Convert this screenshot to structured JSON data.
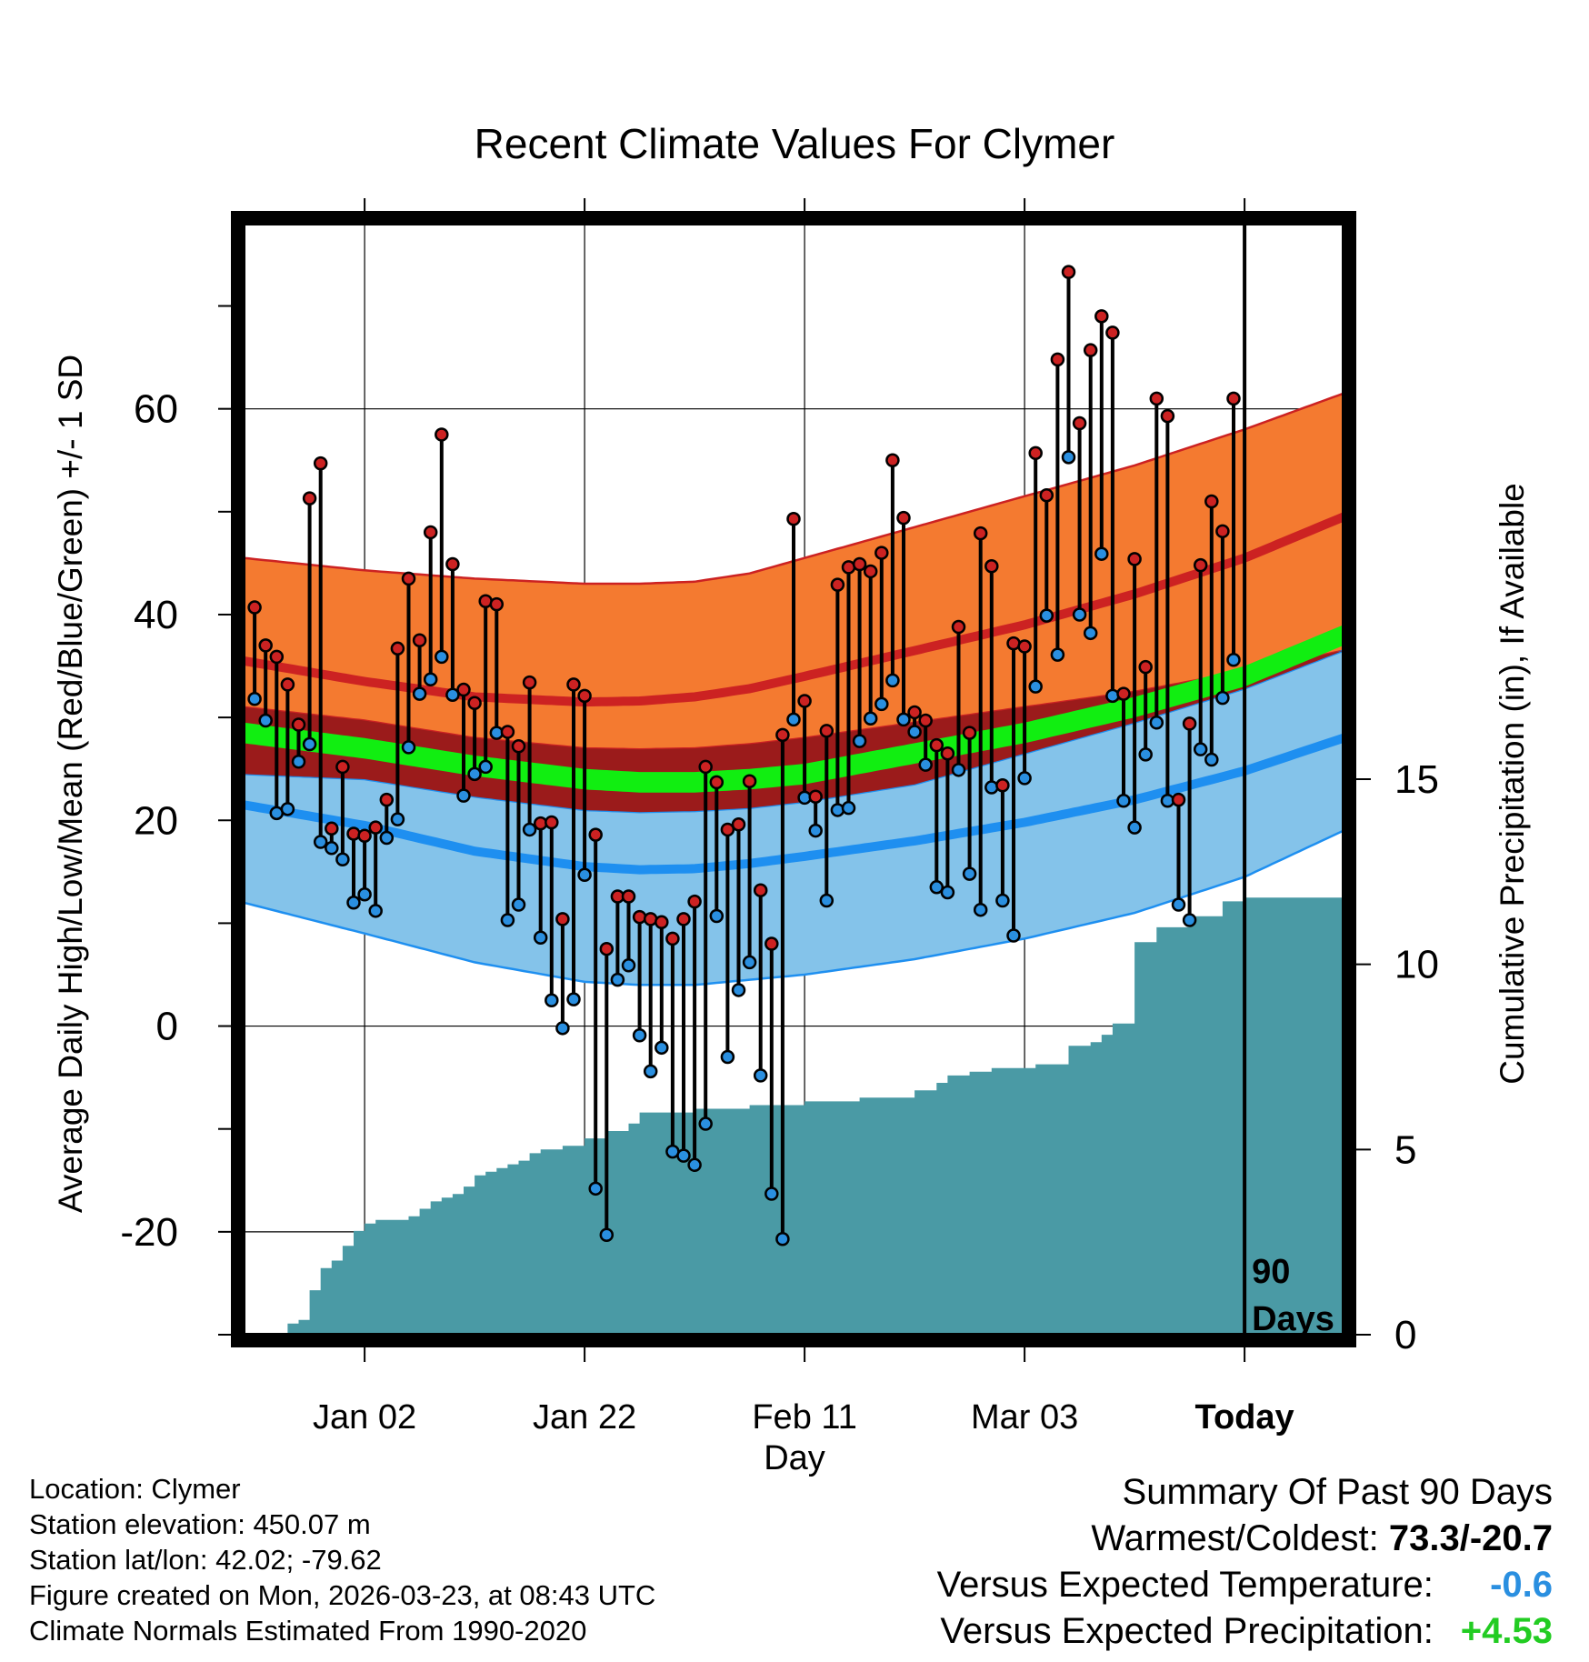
{
  "chart_data": {
    "type": "line",
    "title": "Recent Climate Values For Clymer",
    "xlabel": "Day",
    "ylabel": "Average Daily High/Low/Mean (Red/Blue/Green) +/- 1 SD",
    "y2label": "Cumulative Precipitation (in), If Available",
    "xlim": [
      -11,
      89
    ],
    "ylim": [
      -30,
      78
    ],
    "y2lim": [
      0,
      30
    ],
    "yticks": [
      -20,
      0,
      20,
      40,
      60
    ],
    "y2ticks": [
      0,
      5,
      10,
      15
    ],
    "xticks": [
      {
        "day": 0,
        "label": "Jan 02"
      },
      {
        "day": 20,
        "label": "Jan 22"
      },
      {
        "day": 40,
        "label": "Feb 11"
      },
      {
        "day": 60,
        "label": "Mar 03"
      },
      {
        "day": 80,
        "label": "Today"
      }
    ],
    "today_day": 80,
    "period_label": "90 Days",
    "normals": {
      "days": [
        -11,
        0,
        10,
        20,
        25,
        30,
        35,
        40,
        50,
        60,
        70,
        80,
        89
      ],
      "high_mean": [
        35.5,
        33.5,
        32,
        31.5,
        31.6,
        32,
        32.8,
        34,
        36.5,
        39,
        42,
        45.5,
        49.5
      ],
      "high_sd_upper": [
        45.5,
        44.3,
        43.5,
        43,
        43,
        43.2,
        44,
        45.5,
        48.5,
        51.5,
        54.5,
        58,
        61.5
      ],
      "high_sd_lower": [
        31,
        29.7,
        28,
        27,
        26.9,
        27,
        27.4,
        28,
        29.5,
        31,
        32.5,
        34.5,
        36.5
      ],
      "mean": [
        28.5,
        27,
        25.3,
        24,
        23.7,
        23.7,
        24,
        24.5,
        26.5,
        28.5,
        31,
        34,
        38
      ],
      "mean_sd_upper": [
        29.5,
        28,
        26.3,
        25,
        24.7,
        24.7,
        25,
        25.5,
        27.5,
        29.5,
        32,
        35,
        39
      ],
      "mean_sd_lower": [
        27.5,
        26,
        24.3,
        23,
        22.7,
        22.7,
        23,
        23.5,
        25.5,
        27.5,
        30,
        33,
        37
      ],
      "low_mean": [
        21.5,
        19.5,
        17,
        15.5,
        15.2,
        15.3,
        15.8,
        16.5,
        18,
        19.8,
        22,
        24.8,
        28
      ],
      "low_sd_upper": [
        24.5,
        24,
        22.3,
        21,
        20.8,
        20.9,
        21.2,
        21.8,
        23.5,
        26.5,
        29.5,
        32.8,
        36.5
      ],
      "low_sd_lower": [
        12,
        9,
        6.2,
        4.3,
        4,
        4,
        4.5,
        5,
        6.5,
        8.5,
        11,
        14.5,
        19
      ]
    },
    "series": [
      {
        "name": "Daily High",
        "color": "#cc2222",
        "values": [
          40.7,
          37.0,
          35.9,
          33.2,
          29.3,
          51.3,
          54.7,
          19.2,
          25.2,
          18.7,
          18.5,
          19.3,
          22.0,
          36.7,
          43.5,
          37.5,
          48.0,
          57.5,
          44.9,
          32.7,
          31.4,
          41.3,
          41.0,
          28.6,
          27.2,
          33.4,
          19.7,
          19.8,
          10.4,
          33.2,
          32.1,
          18.6,
          7.5,
          12.6,
          12.6,
          10.6,
          10.4,
          10.1,
          8.5,
          10.4,
          12.1,
          25.2,
          23.7,
          19.1,
          19.6,
          23.8,
          13.2,
          8.0,
          28.3,
          49.3,
          31.6,
          22.3,
          28.7,
          42.9,
          44.6,
          44.9,
          44.2,
          46.0,
          55.0,
          49.4,
          30.5,
          29.7,
          27.3,
          26.5,
          38.8,
          28.5,
          47.9,
          44.7,
          23.4,
          37.2,
          36.9,
          55.7,
          51.6,
          64.8,
          73.3,
          58.6,
          65.7,
          69.0,
          67.4,
          32.3,
          45.4,
          34.9,
          61.0,
          59.3,
          22.0,
          29.4,
          44.8,
          51.0,
          48.1,
          61.0
        ]
      },
      {
        "name": "Daily Low",
        "color": "#2a8fe0",
        "values": [
          31.8,
          29.7,
          20.7,
          21.1,
          25.7,
          27.4,
          17.9,
          17.3,
          16.2,
          12.0,
          12.8,
          11.2,
          18.3,
          20.1,
          27.1,
          32.3,
          33.7,
          35.9,
          32.2,
          22.4,
          24.5,
          25.2,
          28.5,
          10.3,
          11.8,
          19.1,
          8.6,
          2.5,
          -0.2,
          2.6,
          14.7,
          -15.8,
          -20.3,
          4.5,
          5.9,
          -0.9,
          -4.4,
          -2.1,
          -12.2,
          -12.6,
          -13.5,
          -9.5,
          10.7,
          -3.0,
          3.5,
          6.2,
          -4.8,
          -16.3,
          -20.7,
          29.8,
          22.2,
          19.0,
          12.2,
          21.0,
          21.2,
          27.7,
          29.9,
          31.3,
          33.6,
          29.8,
          28.6,
          25.4,
          13.5,
          13.0,
          24.9,
          14.8,
          11.3,
          23.2,
          12.2,
          8.8,
          24.1,
          33.0,
          39.9,
          36.1,
          55.3,
          40.0,
          38.2,
          45.9,
          32.1,
          21.9,
          19.3,
          26.4,
          29.5,
          21.9,
          11.8,
          10.3,
          26.9,
          25.9,
          31.9,
          35.6
        ]
      },
      {
        "name": "Cumulative Precipitation",
        "color": "#4a9aa5",
        "axis": "right",
        "days": [
          -8,
          -7,
          -6,
          -5,
          -4,
          -3,
          -2,
          -1,
          0,
          1,
          2,
          3,
          4,
          5,
          6,
          7,
          8,
          9,
          10,
          11,
          12,
          13,
          14,
          15,
          16,
          17,
          18,
          19,
          20,
          21,
          22,
          23,
          24,
          25,
          30,
          35,
          40,
          45,
          50,
          52,
          53,
          54,
          55,
          57,
          60,
          61,
          62,
          64,
          66,
          67,
          68,
          70,
          72,
          75,
          78,
          80,
          89
        ],
        "values": [
          0.0,
          0.3,
          0.4,
          1.2,
          1.8,
          2.0,
          2.4,
          2.8,
          3.0,
          3.1,
          3.1,
          3.1,
          3.2,
          3.4,
          3.6,
          3.7,
          3.8,
          4.0,
          4.3,
          4.4,
          4.5,
          4.6,
          4.7,
          4.9,
          5.0,
          5.0,
          5.1,
          5.1,
          5.3,
          5.3,
          5.5,
          5.5,
          5.7,
          6.0,
          6.1,
          6.2,
          6.3,
          6.4,
          6.6,
          6.8,
          7.0,
          7.0,
          7.1,
          7.2,
          7.2,
          7.3,
          7.3,
          7.8,
          7.9,
          8.1,
          8.4,
          10.6,
          11.0,
          11.3,
          11.7,
          11.8,
          11.8
        ]
      }
    ]
  },
  "station": {
    "location": "Location: Clymer",
    "elevation": "Station elevation: 450.07 m",
    "latlon": "Station lat/lon: 42.02; -79.62",
    "created": "Figure created on Mon, 2026-03-23, at 08:43 UTC",
    "normals": "Climate Normals Estimated From 1990-2020"
  },
  "summary": {
    "heading": "Summary Of Past 90 Days",
    "warm_cold_label": "Warmest/Coldest:",
    "warm_cold_value": "73.3/-20.7",
    "temp_label": "Versus Expected Temperature:",
    "temp_value": "-0.6",
    "temp_color": "#2a8fe0",
    "precip_label": "Versus Expected Precipitation:",
    "precip_value": "+4.53",
    "precip_color": "#22cc22"
  },
  "colors": {
    "high_band": "#f47a30",
    "high_line": "#cc2222",
    "mean_band": "#9b1b1b",
    "mean_line": "#11ee11",
    "low_band": "#84c3ea",
    "low_line": "#1e8ff0",
    "precip": "#4a9aa5"
  }
}
